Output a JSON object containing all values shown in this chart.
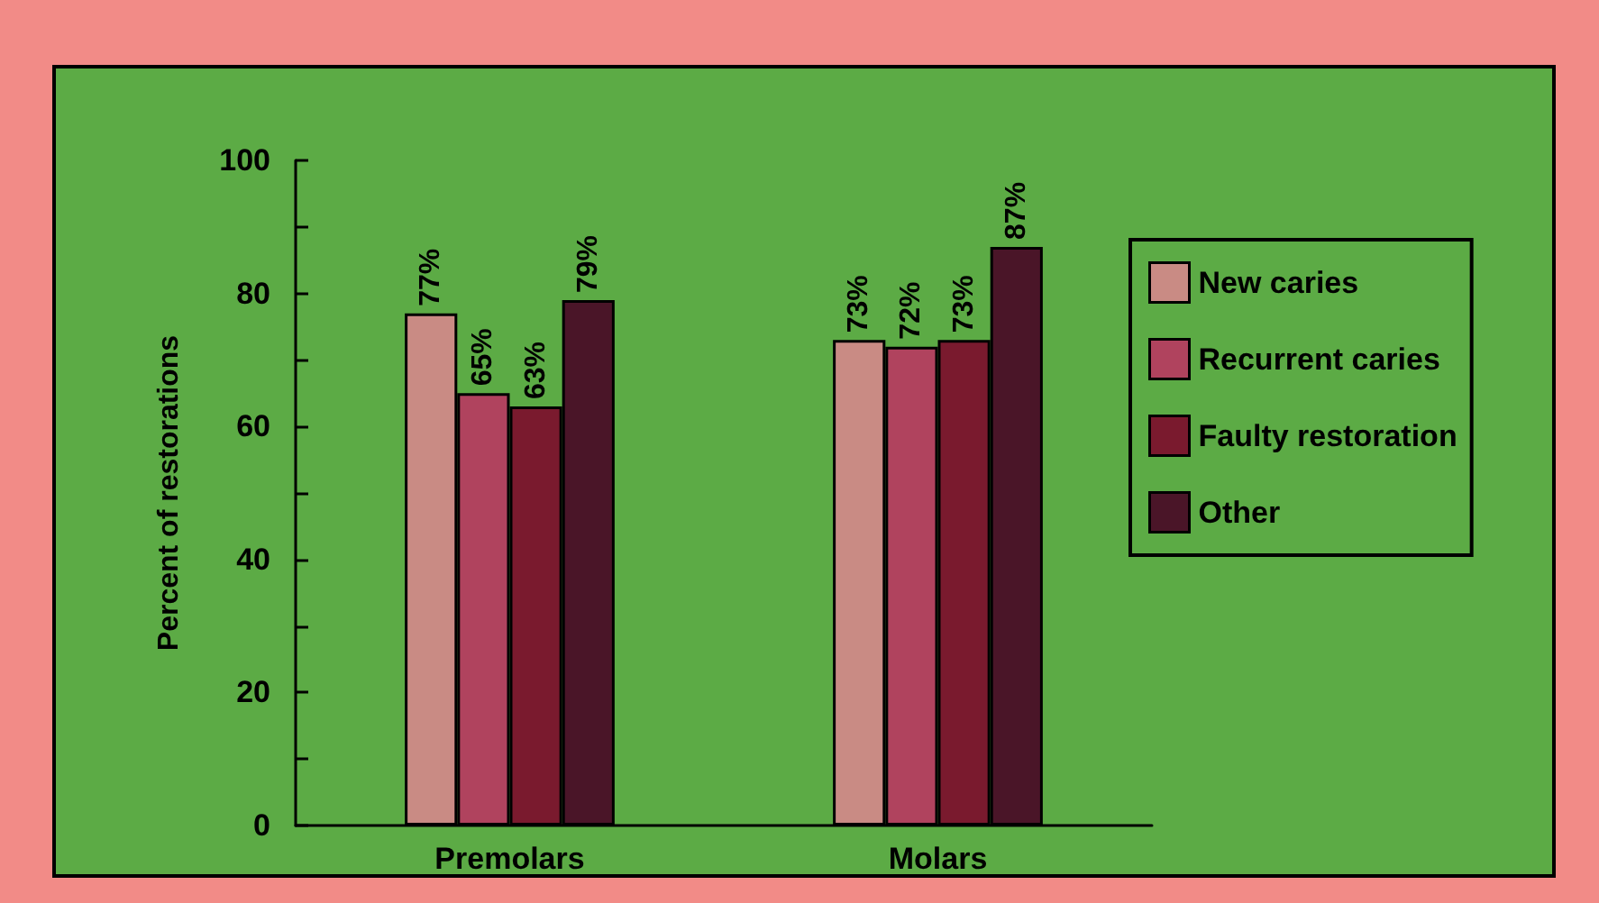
{
  "chart_data": {
    "type": "bar",
    "ylabel": "Percent of restorations",
    "categories": [
      "Premolars",
      "Molars"
    ],
    "series": [
      {
        "name": "New caries",
        "color": "#c98b84",
        "values": [
          77,
          73
        ],
        "value_labels": [
          "77%",
          "73%"
        ]
      },
      {
        "name": "Recurrent caries",
        "color": "#b0435e",
        "values": [
          65,
          72
        ],
        "value_labels": [
          "65%",
          "72%"
        ]
      },
      {
        "name": "Faulty restoration",
        "color": "#7a1a2e",
        "values": [
          63,
          73
        ],
        "value_labels": [
          "63%",
          "73%"
        ]
      },
      {
        "name": "Other",
        "color": "#4a1528",
        "values": [
          79,
          87
        ],
        "value_labels": [
          "79%",
          "87%"
        ]
      }
    ],
    "ylim": [
      0,
      100
    ],
    "yticks": [
      0,
      {
        "value": 10,
        "label": null
      },
      20,
      {
        "value": 30,
        "label": null
      },
      40,
      {
        "value": 50,
        "label": null
      },
      60,
      {
        "value": 70,
        "label": null
      },
      80,
      {
        "value": 90,
        "label": null
      },
      100
    ],
    "grid": false,
    "legend": "right"
  }
}
